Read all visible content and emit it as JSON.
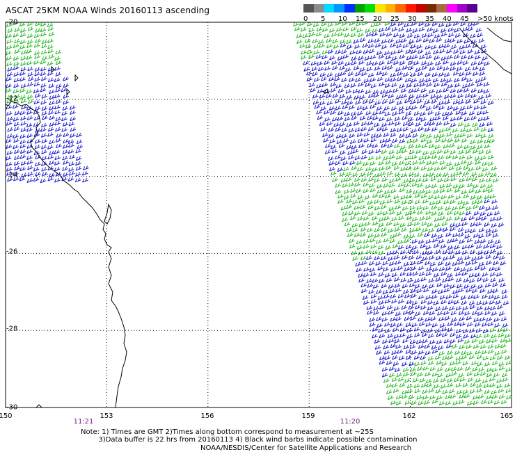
{
  "title": "ASCAT 25KM NOAA Winds 20160113 ascending",
  "legend": {
    "colors": [
      "#555555",
      "#8c8c8c",
      "#00d8ff",
      "#0096ff",
      "#0030ff",
      "#00a000",
      "#00e000",
      "#f8e400",
      "#ffb000",
      "#ff6600",
      "#ff1800",
      "#c80000",
      "#7a2a00",
      "#a86a40",
      "#ff00ff",
      "#a000c8",
      "#5a0090"
    ],
    "tick_labels": [
      "0",
      "5",
      "10",
      "15",
      "20",
      "25",
      "30",
      "35",
      "40",
      "45"
    ],
    "unit_label": ">50 knots"
  },
  "x_ticks": [
    "150",
    "153",
    "156",
    "159",
    "162",
    "165"
  ],
  "y_ticks": [
    "-20",
    "-22",
    "-24",
    "-26",
    "-28",
    "-30"
  ],
  "pass_times": [
    "11:21",
    "11:20"
  ],
  "note_line1": "Note: 1) Times are GMT 2)Times along bottom correspond to measurement at ~25S",
  "note_line2": "3)Data buffer is 22 hrs from 20160113 4) Black wind barbs indicate possible contamination",
  "credit": "NOAA/NESDIS/Center for Satellite Applications and Research",
  "map": {
    "lon_range": [
      150,
      165
    ],
    "lat_range": [
      -20,
      -30
    ],
    "grid": true
  }
}
